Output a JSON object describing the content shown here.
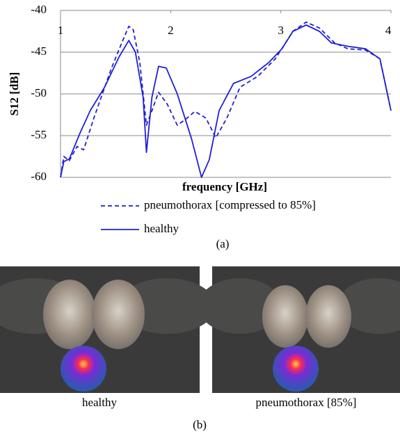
{
  "chart_data": {
    "type": "line",
    "xlabel": "frequency [GHz]",
    "ylabel": "S12 [dB]",
    "xlim": [
      1,
      4
    ],
    "ylim": [
      -60,
      -40
    ],
    "xticks": [
      1,
      2,
      3,
      4
    ],
    "yticks": [
      -40,
      -45,
      -50,
      -55,
      -60
    ],
    "grid": true,
    "series": [
      {
        "name": "pneumothorax [compressed to 85%]",
        "color": "#1f1fd6",
        "linestyle": "dashed",
        "x": [
          1.0,
          1.03,
          1.08,
          1.15,
          1.21,
          1.3,
          1.46,
          1.56,
          1.62,
          1.66,
          1.72,
          1.78,
          1.83,
          1.89,
          1.97,
          2.06,
          2.13,
          2.22,
          2.32,
          2.41,
          2.51,
          2.63,
          2.79,
          2.95,
          3.11,
          3.23,
          3.35,
          3.49,
          3.61,
          3.77,
          3.9,
          4.0
        ],
        "values": [
          -60,
          -57.5,
          -58,
          -56.3,
          -56.7,
          -53,
          -47,
          -43.75,
          -41.9,
          -42.3,
          -46.25,
          -53.75,
          -52,
          -49.8,
          -51.25,
          -53.75,
          -53.1,
          -52.1,
          -52.9,
          -55.25,
          -52.9,
          -49.2,
          -47.9,
          -45.8,
          -42.5,
          -41.4,
          -42.1,
          -43.9,
          -44.6,
          -44.75,
          -45.8,
          -52
        ]
      },
      {
        "name": "healthy",
        "color": "#1f1fd6",
        "linestyle": "solid",
        "x": [
          1.0,
          1.03,
          1.08,
          1.18,
          1.27,
          1.4,
          1.53,
          1.62,
          1.68,
          1.75,
          1.78,
          1.83,
          1.89,
          1.96,
          2.06,
          2.19,
          2.28,
          2.35,
          2.44,
          2.57,
          2.73,
          2.89,
          3.01,
          3.11,
          3.23,
          3.35,
          3.46,
          3.61,
          3.77,
          3.9,
          4.0
        ],
        "values": [
          -60,
          -58.1,
          -57.8,
          -54.6,
          -52,
          -49.2,
          -45.6,
          -43.6,
          -45,
          -50.4,
          -57,
          -50.4,
          -46.7,
          -46.9,
          -50,
          -55.4,
          -60,
          -57.9,
          -52,
          -48.75,
          -47.9,
          -46.25,
          -44.6,
          -42.5,
          -41.75,
          -42.5,
          -43.9,
          -44.3,
          -44.6,
          -45.8,
          -52
        ]
      }
    ]
  },
  "caption_a": "(a)",
  "images": [
    {
      "label": "healthy"
    },
    {
      "label": "pneumothorax [85%]"
    }
  ],
  "caption_b": "(b)"
}
